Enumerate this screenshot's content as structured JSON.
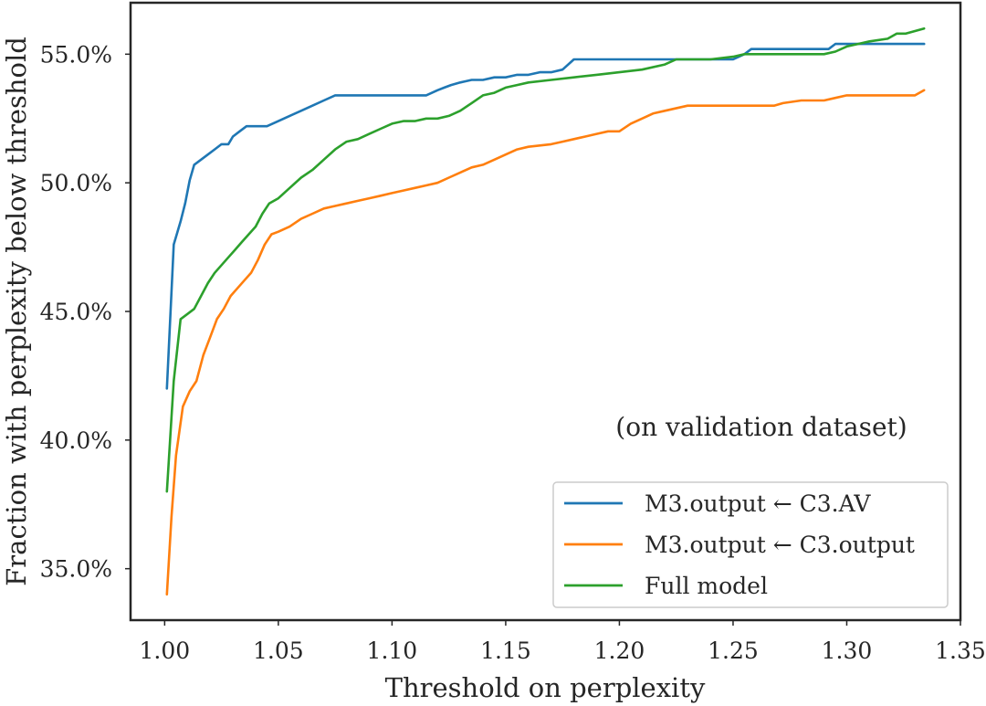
{
  "chart_data": {
    "type": "line",
    "title": "",
    "xlabel": "Threshold on perplexity",
    "ylabel": "Fraction with perplexity below threshold",
    "xlim": [
      0.985,
      1.35
    ],
    "ylim": [
      33.0,
      57.0
    ],
    "xticks": [
      1.0,
      1.05,
      1.1,
      1.15,
      1.2,
      1.25,
      1.3,
      1.35
    ],
    "xtick_labels": [
      "1.00",
      "1.05",
      "1.10",
      "1.15",
      "1.20",
      "1.25",
      "1.30",
      "1.35"
    ],
    "yticks": [
      35,
      40,
      45,
      50,
      55
    ],
    "ytick_labels": [
      "35.0%",
      "40.0%",
      "45.0%",
      "50.0%",
      "55.0%"
    ],
    "grid": false,
    "legend_position": "lower-right",
    "annotation": "(on validation dataset)",
    "series": [
      {
        "name": "M3.output ← C3.AV",
        "color": "#1f77b4",
        "x": [
          1.001,
          1.004,
          1.007,
          1.009,
          1.011,
          1.013,
          1.016,
          1.019,
          1.022,
          1.025,
          1.028,
          1.03,
          1.033,
          1.036,
          1.04,
          1.045,
          1.05,
          1.055,
          1.06,
          1.065,
          1.07,
          1.075,
          1.08,
          1.09,
          1.1,
          1.11,
          1.115,
          1.12,
          1.123,
          1.126,
          1.13,
          1.135,
          1.14,
          1.145,
          1.15,
          1.155,
          1.16,
          1.165,
          1.17,
          1.175,
          1.18,
          1.183,
          1.19,
          1.2,
          1.21,
          1.22,
          1.23,
          1.24,
          1.25,
          1.255,
          1.258,
          1.265,
          1.28,
          1.292,
          1.295,
          1.3,
          1.31,
          1.32,
          1.334
        ],
        "values": [
          42.0,
          47.6,
          48.5,
          49.2,
          50.1,
          50.7,
          50.9,
          51.1,
          51.3,
          51.5,
          51.5,
          51.8,
          52.0,
          52.2,
          52.2,
          52.2,
          52.4,
          52.6,
          52.8,
          53.0,
          53.2,
          53.4,
          53.4,
          53.4,
          53.4,
          53.4,
          53.4,
          53.6,
          53.7,
          53.8,
          53.9,
          54.0,
          54.0,
          54.1,
          54.1,
          54.2,
          54.2,
          54.3,
          54.3,
          54.4,
          54.8,
          54.8,
          54.8,
          54.8,
          54.8,
          54.8,
          54.8,
          54.8,
          54.8,
          55.0,
          55.2,
          55.2,
          55.2,
          55.2,
          55.4,
          55.4,
          55.4,
          55.4,
          55.4
        ]
      },
      {
        "name": "M3.output ← C3.output",
        "color": "#ff7f0e",
        "x": [
          1.001,
          1.003,
          1.005,
          1.008,
          1.011,
          1.014,
          1.017,
          1.02,
          1.023,
          1.026,
          1.029,
          1.032,
          1.035,
          1.038,
          1.041,
          1.044,
          1.047,
          1.05,
          1.055,
          1.06,
          1.065,
          1.07,
          1.075,
          1.08,
          1.085,
          1.09,
          1.095,
          1.1,
          1.105,
          1.11,
          1.115,
          1.12,
          1.125,
          1.13,
          1.135,
          1.14,
          1.145,
          1.15,
          1.155,
          1.16,
          1.17,
          1.175,
          1.18,
          1.185,
          1.19,
          1.195,
          1.2,
          1.205,
          1.21,
          1.215,
          1.22,
          1.23,
          1.24,
          1.25,
          1.26,
          1.268,
          1.272,
          1.28,
          1.29,
          1.295,
          1.3,
          1.31,
          1.32,
          1.33,
          1.334
        ],
        "values": [
          34.0,
          37.0,
          39.4,
          41.3,
          41.9,
          42.3,
          43.3,
          44.0,
          44.7,
          45.1,
          45.6,
          45.9,
          46.2,
          46.5,
          47.0,
          47.6,
          48.0,
          48.1,
          48.3,
          48.6,
          48.8,
          49.0,
          49.1,
          49.2,
          49.3,
          49.4,
          49.5,
          49.6,
          49.7,
          49.8,
          49.9,
          50.0,
          50.2,
          50.4,
          50.6,
          50.7,
          50.9,
          51.1,
          51.3,
          51.4,
          51.5,
          51.6,
          51.7,
          51.8,
          51.9,
          52.0,
          52.0,
          52.3,
          52.5,
          52.7,
          52.8,
          53.0,
          53.0,
          53.0,
          53.0,
          53.0,
          53.1,
          53.2,
          53.2,
          53.3,
          53.4,
          53.4,
          53.4,
          53.4,
          53.6
        ]
      },
      {
        "name": "Full model",
        "color": "#2ca02c",
        "x": [
          1.001,
          1.004,
          1.007,
          1.01,
          1.013,
          1.016,
          1.019,
          1.022,
          1.025,
          1.028,
          1.031,
          1.034,
          1.037,
          1.04,
          1.043,
          1.046,
          1.05,
          1.055,
          1.06,
          1.065,
          1.07,
          1.075,
          1.08,
          1.085,
          1.09,
          1.095,
          1.1,
          1.105,
          1.11,
          1.115,
          1.12,
          1.125,
          1.13,
          1.135,
          1.14,
          1.145,
          1.15,
          1.155,
          1.16,
          1.17,
          1.18,
          1.19,
          1.2,
          1.21,
          1.22,
          1.225,
          1.23,
          1.24,
          1.25,
          1.255,
          1.26,
          1.27,
          1.28,
          1.29,
          1.295,
          1.3,
          1.305,
          1.31,
          1.318,
          1.322,
          1.326,
          1.33,
          1.334
        ],
        "values": [
          38.0,
          42.3,
          44.7,
          44.9,
          45.1,
          45.6,
          46.1,
          46.5,
          46.8,
          47.1,
          47.4,
          47.7,
          48.0,
          48.3,
          48.8,
          49.2,
          49.4,
          49.8,
          50.2,
          50.5,
          50.9,
          51.3,
          51.6,
          51.7,
          51.9,
          52.1,
          52.3,
          52.4,
          52.4,
          52.5,
          52.5,
          52.6,
          52.8,
          53.1,
          53.4,
          53.5,
          53.7,
          53.8,
          53.9,
          54.0,
          54.1,
          54.2,
          54.3,
          54.4,
          54.6,
          54.8,
          54.8,
          54.8,
          54.9,
          55.0,
          55.0,
          55.0,
          55.0,
          55.0,
          55.1,
          55.3,
          55.4,
          55.5,
          55.6,
          55.8,
          55.8,
          55.9,
          56.0
        ]
      }
    ]
  }
}
